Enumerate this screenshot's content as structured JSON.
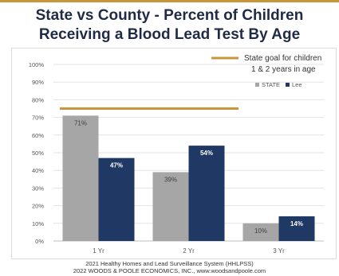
{
  "title": {
    "line1": "State vs County - Percent of Children",
    "line2": "Receiving a Blood Lead Test By Age"
  },
  "footer": {
    "line1": "2021 Healthy Homes and Lead Surveillance System (HHLPSS)",
    "line2": "2022 WOODS & POOLE ECONOMICS, INC., www.woodsandpoole.com"
  },
  "chart_data": {
    "type": "bar",
    "title": "State vs County - Percent of Children Receiving a Blood Lead Test By Age",
    "categories": [
      "1 Yr",
      "2 Yr",
      "3 Yr"
    ],
    "series": [
      {
        "name": "STATE",
        "values": [
          71,
          39,
          10
        ],
        "labels": [
          "71%",
          "39%",
          "10%"
        ],
        "color": "#a6a6a6",
        "label_color": "#404040"
      },
      {
        "name": "Lee",
        "values": [
          47,
          54,
          14
        ],
        "labels": [
          "47%",
          "54%",
          "14%"
        ],
        "color": "#1f3864",
        "label_color": "#ffffff"
      }
    ],
    "ylim": [
      0,
      100
    ],
    "yticks": [
      0,
      10,
      20,
      30,
      40,
      50,
      60,
      70,
      80,
      90,
      100
    ],
    "ytick_labels": [
      "0%",
      "10%",
      "20%",
      "30%",
      "40%",
      "50%",
      "60%",
      "70%",
      "80%",
      "90%",
      "100%"
    ],
    "grid": true,
    "legend_position": "top-right",
    "reference_line": {
      "value": 75,
      "label_line1": "State goal for children",
      "label_line2": "1 & 2 years in age",
      "color": "#c9963b"
    }
  }
}
